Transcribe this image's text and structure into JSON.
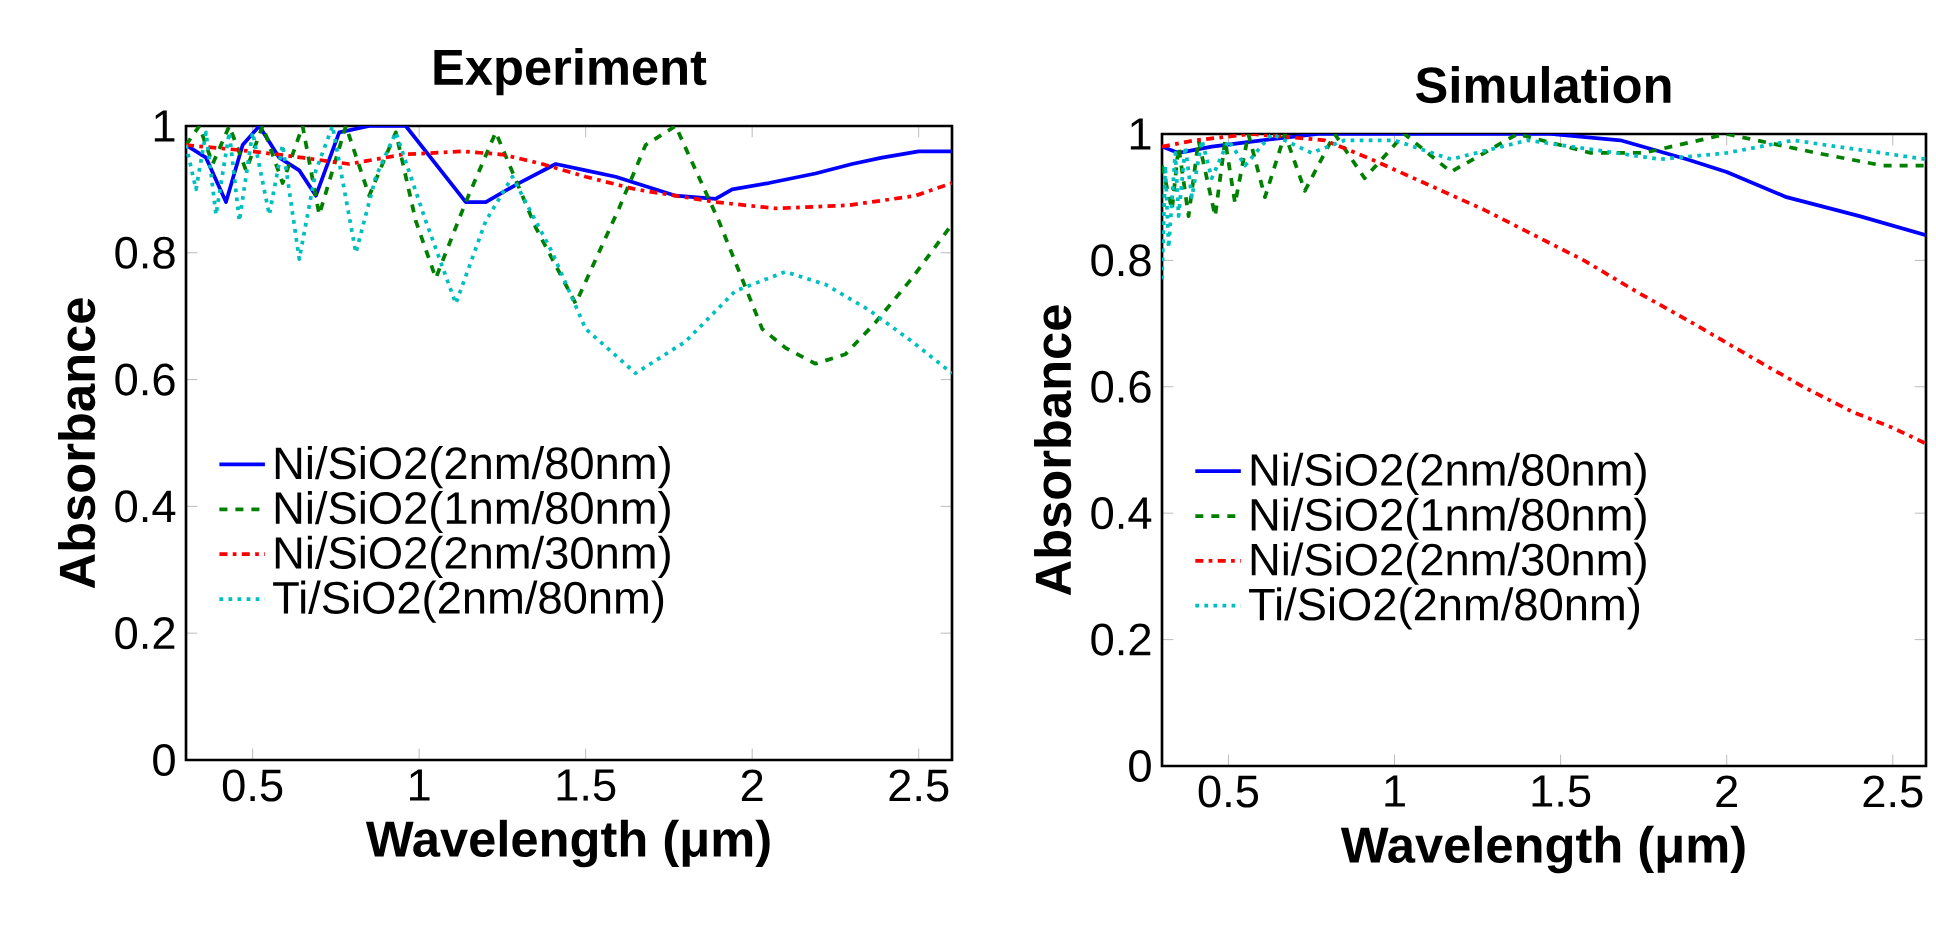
{
  "chart_data": [
    {
      "type": "line",
      "title": "Experiment",
      "xlabel": "Wavelength (μm)",
      "ylabel": "Absorbance",
      "xlim": [
        0.3,
        2.6
      ],
      "ylim": [
        0,
        1
      ],
      "xticks": [
        0.5,
        1,
        1.5,
        2,
        2.5
      ],
      "yticks": [
        0,
        0.2,
        0.4,
        0.6,
        0.8,
        1
      ],
      "legend": "left",
      "series": [
        {
          "name": "Ni/SiO2(2nm/80nm)",
          "color": "#0000ff",
          "line_style": "solid",
          "x": [
            0.3,
            0.36,
            0.42,
            0.47,
            0.52,
            0.58,
            0.64,
            0.69,
            0.76,
            0.85,
            0.96,
            1.05,
            1.14,
            1.2,
            1.3,
            1.41,
            1.5,
            1.59,
            1.68,
            1.77,
            1.89,
            1.94,
            2.05,
            2.19,
            2.3,
            2.39,
            2.5,
            2.6
          ],
          "values": [
            0.97,
            0.95,
            0.88,
            0.97,
            1.0,
            0.95,
            0.93,
            0.89,
            0.99,
            1.0,
            1.0,
            0.94,
            0.88,
            0.88,
            0.91,
            0.94,
            0.93,
            0.92,
            0.905,
            0.89,
            0.885,
            0.9,
            0.91,
            0.925,
            0.94,
            0.95,
            0.96,
            0.96
          ]
        },
        {
          "name": "Ni/SiO2(1nm/80nm)",
          "color": "#008000",
          "line_style": "dashed",
          "x": [
            0.3,
            0.34,
            0.38,
            0.43,
            0.48,
            0.53,
            0.59,
            0.65,
            0.7,
            0.78,
            0.85,
            0.93,
            0.99,
            1.05,
            1.14,
            1.23,
            1.35,
            1.47,
            1.6,
            1.68,
            1.77,
            1.9,
            2.03,
            2.1,
            2.19,
            2.28,
            2.37,
            2.48,
            2.6
          ],
          "values": [
            0.97,
            1.0,
            0.94,
            1.0,
            0.93,
            1.0,
            0.91,
            1.0,
            0.86,
            1.0,
            0.89,
            0.99,
            0.85,
            0.76,
            0.88,
            0.99,
            0.84,
            0.72,
            0.87,
            0.97,
            1.0,
            0.85,
            0.68,
            0.65,
            0.625,
            0.64,
            0.69,
            0.76,
            0.845
          ]
        },
        {
          "name": "Ni/SiO2(2nm/30nm)",
          "color": "#ff0000",
          "line_style": "dashdot",
          "x": [
            0.3,
            0.5,
            0.65,
            0.79,
            0.95,
            1.13,
            1.25,
            1.37,
            1.5,
            1.65,
            1.77,
            1.89,
            2.07,
            2.29,
            2.49,
            2.6
          ],
          "values": [
            0.97,
            0.96,
            0.95,
            0.94,
            0.955,
            0.96,
            0.955,
            0.94,
            0.92,
            0.9,
            0.89,
            0.88,
            0.87,
            0.875,
            0.89,
            0.91
          ]
        },
        {
          "name": "Ti/SiO2(2nm/80nm)",
          "color": "#00bfbf",
          "line_style": "dotted",
          "x": [
            0.3,
            0.33,
            0.36,
            0.39,
            0.43,
            0.46,
            0.5,
            0.55,
            0.59,
            0.64,
            0.69,
            0.74,
            0.81,
            0.87,
            0.93,
            1.02,
            1.11,
            1.2,
            1.28,
            1.4,
            1.5,
            1.65,
            1.8,
            1.95,
            2.1,
            2.22,
            2.35,
            2.48,
            2.6
          ],
          "values": [
            0.97,
            0.9,
            0.99,
            0.86,
            0.99,
            0.85,
            0.99,
            0.86,
            0.97,
            0.79,
            0.93,
            1.0,
            0.8,
            0.92,
            0.99,
            0.85,
            0.72,
            0.85,
            0.92,
            0.8,
            0.68,
            0.61,
            0.66,
            0.74,
            0.77,
            0.75,
            0.71,
            0.66,
            0.61
          ]
        }
      ]
    },
    {
      "type": "line",
      "title": "Simulation",
      "xlabel": "Wavelength (μm)",
      "ylabel": "Absorbance",
      "xlim": [
        0.3,
        2.6
      ],
      "ylim": [
        0,
        1
      ],
      "xticks": [
        0.5,
        1,
        1.5,
        2,
        2.5
      ],
      "yticks": [
        0,
        0.2,
        0.4,
        0.6,
        0.8,
        1
      ],
      "legend": "left",
      "series": [
        {
          "name": "Ni/SiO2(2nm/80nm)",
          "color": "#0000ff",
          "line_style": "solid",
          "x": [
            0.3,
            0.35,
            0.45,
            0.6,
            0.77,
            1.0,
            1.2,
            1.47,
            1.68,
            1.88,
            2.0,
            2.18,
            2.4,
            2.6
          ],
          "values": [
            0.98,
            0.97,
            0.98,
            0.99,
            1.0,
            1.0,
            1.0,
            1.0,
            0.99,
            0.96,
            0.94,
            0.9,
            0.87,
            0.84
          ]
        },
        {
          "name": "Ni/SiO2(1nm/80nm)",
          "color": "#008000",
          "line_style": "dashed",
          "x": [
            0.3,
            0.33,
            0.35,
            0.38,
            0.41,
            0.46,
            0.49,
            0.52,
            0.56,
            0.61,
            0.67,
            0.73,
            0.82,
            0.91,
            1.03,
            1.17,
            1.37,
            1.59,
            1.75,
            2.0,
            2.27,
            2.47,
            2.6
          ],
          "values": [
            0.95,
            0.88,
            0.98,
            0.87,
            0.99,
            0.87,
            0.99,
            0.89,
            1.0,
            0.9,
            1.0,
            0.91,
            1.0,
            0.93,
            1.0,
            0.94,
            1.0,
            0.97,
            0.97,
            1.0,
            0.97,
            0.95,
            0.95
          ]
        },
        {
          "name": "Ni/SiO2(2nm/30nm)",
          "color": "#ff0000",
          "line_style": "dashdot",
          "x": [
            0.3,
            0.4,
            0.57,
            0.79,
            0.93,
            1.1,
            1.27,
            1.42,
            1.57,
            1.73,
            1.9,
            2.08,
            2.23,
            2.38,
            2.5,
            2.6
          ],
          "values": [
            0.98,
            0.99,
            1.0,
            0.99,
            0.96,
            0.92,
            0.88,
            0.84,
            0.8,
            0.75,
            0.7,
            0.645,
            0.6,
            0.56,
            0.535,
            0.51
          ]
        },
        {
          "name": "Ti/SiO2(2nm/80nm)",
          "color": "#00bfbf",
          "line_style": "dotted",
          "x": [
            0.3,
            0.31,
            0.32,
            0.34,
            0.35,
            0.37,
            0.39,
            0.42,
            0.45,
            0.5,
            0.55,
            0.63,
            0.75,
            0.85,
            1.0,
            1.17,
            1.4,
            1.6,
            1.8,
            2.0,
            2.2,
            2.4,
            2.6
          ],
          "values": [
            0.77,
            0.95,
            0.82,
            0.97,
            0.87,
            0.98,
            0.9,
            0.99,
            0.93,
            0.99,
            0.95,
            1.0,
            0.97,
            0.99,
            0.99,
            0.96,
            0.99,
            0.975,
            0.96,
            0.97,
            0.99,
            0.975,
            0.96
          ]
        }
      ]
    }
  ]
}
